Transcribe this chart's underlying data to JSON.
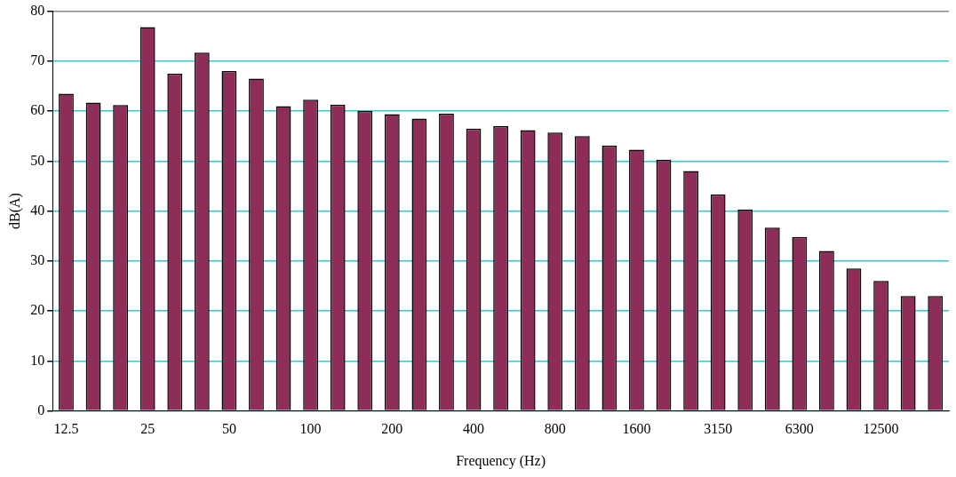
{
  "chart_data": {
    "type": "bar",
    "xlabel": "Frequency (Hz)",
    "ylabel": "dB(A)",
    "categories": [
      "12.5",
      null,
      null,
      "25",
      null,
      null,
      "50",
      null,
      null,
      "100",
      null,
      null,
      "200",
      null,
      null,
      "400",
      null,
      null,
      "800",
      null,
      null,
      "1600",
      null,
      null,
      "3150",
      null,
      null,
      "6300",
      null,
      null,
      "12500",
      null,
      null
    ],
    "values": [
      63.5,
      61.7,
      61.2,
      76.8,
      67.5,
      71.7,
      68,
      66.5,
      61,
      62.3,
      61.3,
      60,
      59.4,
      58.5,
      59.5,
      56.5,
      57,
      56.2,
      55.7,
      55,
      53.1,
      52.3,
      50.3,
      48,
      43.3,
      40.3,
      36.7,
      34.8,
      32,
      28.5,
      26,
      23,
      23
    ],
    "color": "#8e2c5a",
    "ylim": [
      0,
      80
    ],
    "yticks": [
      0,
      10,
      20,
      30,
      40,
      50,
      60,
      70,
      80
    ],
    "grid": "y"
  }
}
